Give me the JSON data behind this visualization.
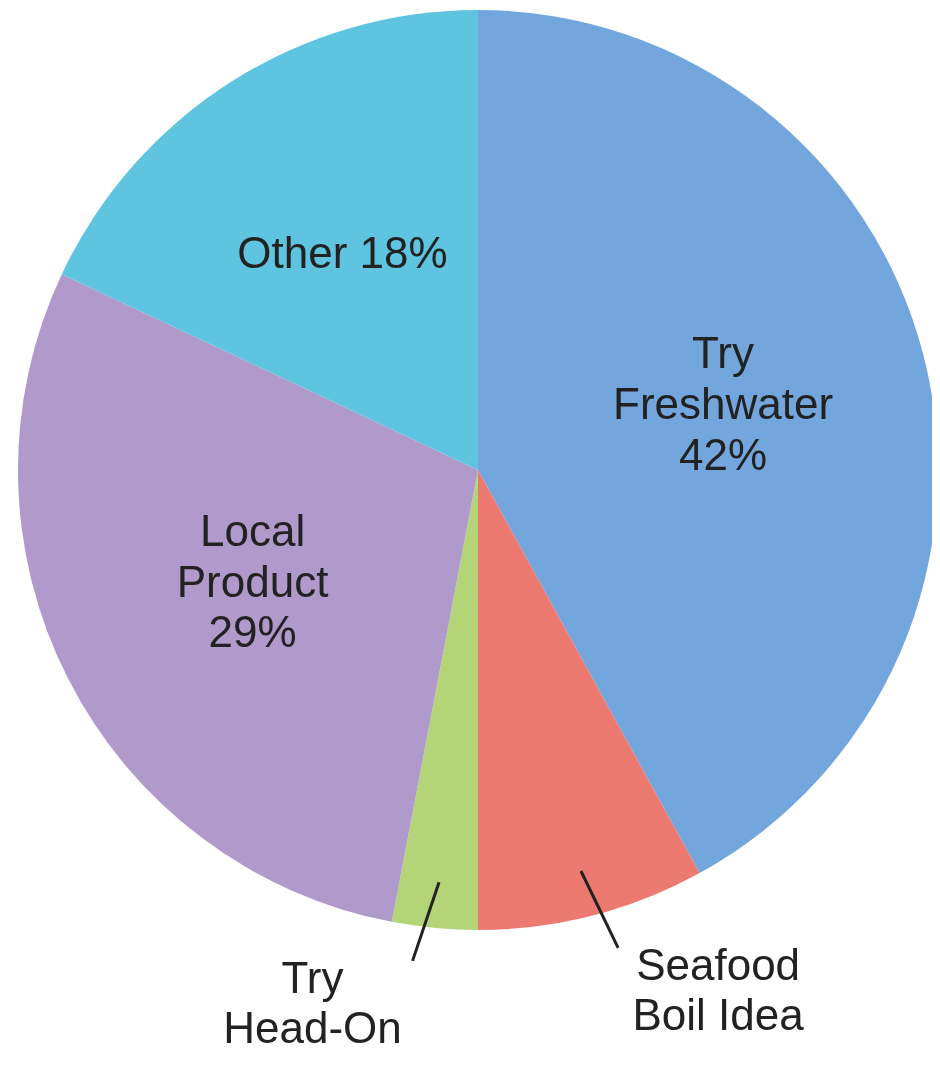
{
  "chart_data": {
    "type": "pie",
    "categories": [
      "Try Freshwater",
      "Seafood Boil Idea",
      "Try Head-On",
      "Local Product",
      "Other"
    ],
    "values": [
      42,
      8,
      3,
      29,
      18
    ],
    "colors": [
      "#72a6dc",
      "#ec7a70",
      "#b4d478",
      "#b099cb",
      "#5ec4df"
    ],
    "value_labels": [
      "42%",
      null,
      null,
      "29%",
      "18%"
    ]
  }
}
